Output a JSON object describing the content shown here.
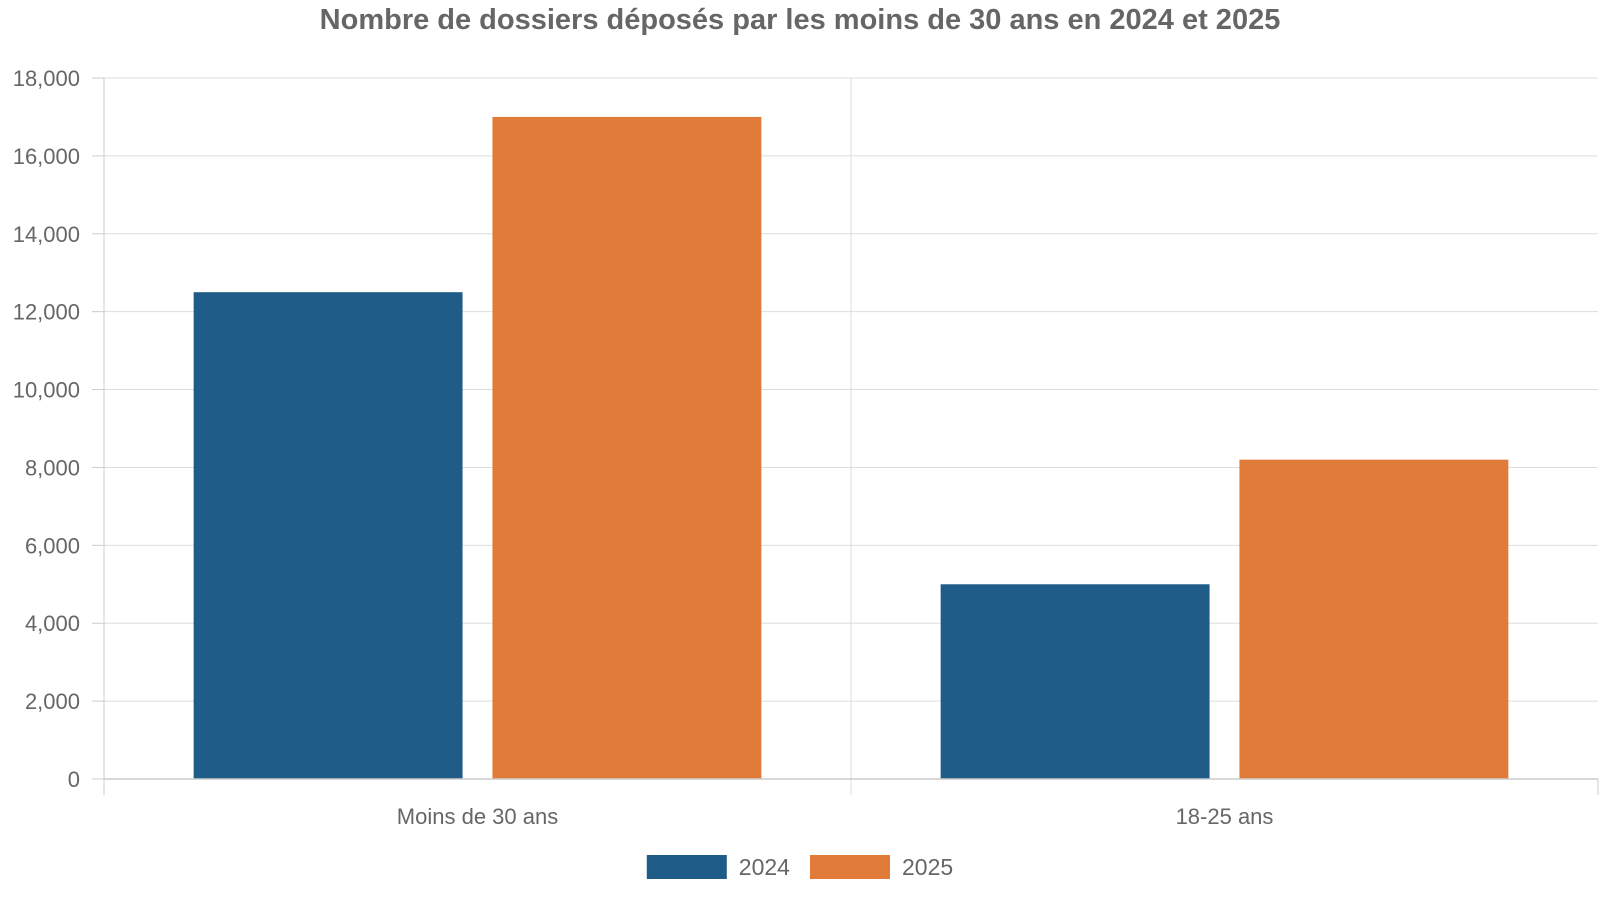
{
  "chart_data": {
    "type": "bar",
    "title": "Nombre de dossiers déposés par les moins de 30 ans en 2024 et 2025",
    "xlabel": "",
    "ylabel": "",
    "categories": [
      "Moins de 30 ans",
      "18-25 ans"
    ],
    "series": [
      {
        "name": "2024",
        "color": "#1f5c87",
        "values": [
          12500,
          5000
        ]
      },
      {
        "name": "2025",
        "color": "#e07b39",
        "values": [
          17000,
          8200
        ]
      }
    ],
    "ylim": [
      0,
      18000
    ],
    "yticks": [
      0,
      2000,
      4000,
      6000,
      8000,
      10000,
      12000,
      14000,
      16000,
      18000
    ],
    "ytick_labels": [
      "0",
      "2,000",
      "4,000",
      "6,000",
      "8,000",
      "10,000",
      "12,000",
      "14,000",
      "16,000",
      "18,000"
    ],
    "grid": true,
    "legend_position": "bottom-center"
  }
}
